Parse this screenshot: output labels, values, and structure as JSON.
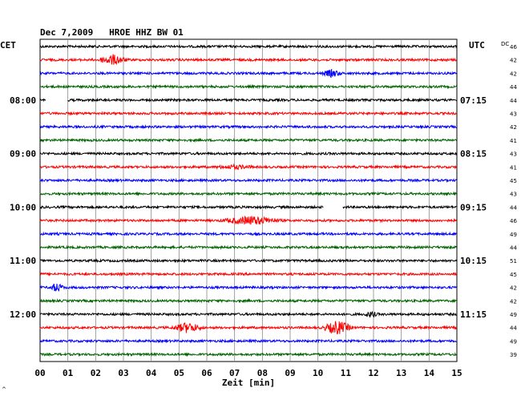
{
  "chart_data": {
    "type": "line",
    "title": "Dec 7,2009   HROE HHZ BW 01",
    "left_tz": "CET",
    "right_tz": "UTC",
    "dc_label": "DC",
    "xlabel": "Zeit [min]",
    "x_ticks": [
      "00",
      "01",
      "02",
      "03",
      "04",
      "05",
      "06",
      "07",
      "08",
      "09",
      "10",
      "11",
      "12",
      "13",
      "14",
      "15"
    ],
    "xlim": [
      0,
      15
    ],
    "grid": true,
    "trace_colors": [
      "#000000",
      "#ff0000",
      "#0000ff",
      "#006400"
    ],
    "left_hour_labels": [
      {
        "row": 4,
        "text": "08:00"
      },
      {
        "row": 8,
        "text": "09:00"
      },
      {
        "row": 12,
        "text": "10:00"
      },
      {
        "row": 16,
        "text": "11:00"
      },
      {
        "row": 20,
        "text": "12:00"
      }
    ],
    "right_hour_labels": [
      {
        "row": 4,
        "text": "07:15"
      },
      {
        "row": 8,
        "text": "08:15"
      },
      {
        "row": 12,
        "text": "09:15"
      },
      {
        "row": 16,
        "text": "10:15"
      },
      {
        "row": 20,
        "text": "11:15"
      }
    ],
    "dc_values": [
      "46",
      "42",
      "42",
      "44",
      "44",
      "43",
      "42",
      "41",
      "43",
      "41",
      "45",
      "43",
      "44",
      "46",
      "49",
      "44",
      "51",
      "45",
      "42",
      "42",
      "49",
      "44",
      "49",
      "39"
    ],
    "events": [
      {
        "row": 1,
        "minute": 2.6,
        "amp": 6,
        "width": 0.6
      },
      {
        "row": 2,
        "minute": 10.5,
        "amp": 4,
        "width": 0.4
      },
      {
        "row": 9,
        "minute": 7.0,
        "amp": 2,
        "width": 0.8
      },
      {
        "row": 13,
        "minute": 7.6,
        "amp": 5,
        "width": 1.2
      },
      {
        "row": 18,
        "minute": 0.6,
        "amp": 5,
        "width": 0.3
      },
      {
        "row": 20,
        "minute": 11.9,
        "amp": 3,
        "width": 0.3
      },
      {
        "row": 21,
        "minute": 5.3,
        "amp": 6,
        "width": 0.6
      },
      {
        "row": 21,
        "minute": 10.7,
        "amp": 8,
        "width": 0.6
      }
    ],
    "gaps": [
      {
        "row": 4,
        "start": 0.2,
        "end": 1.0
      },
      {
        "row": 12,
        "start": 10.2,
        "end": 10.9
      }
    ]
  },
  "footer_mark": "^"
}
